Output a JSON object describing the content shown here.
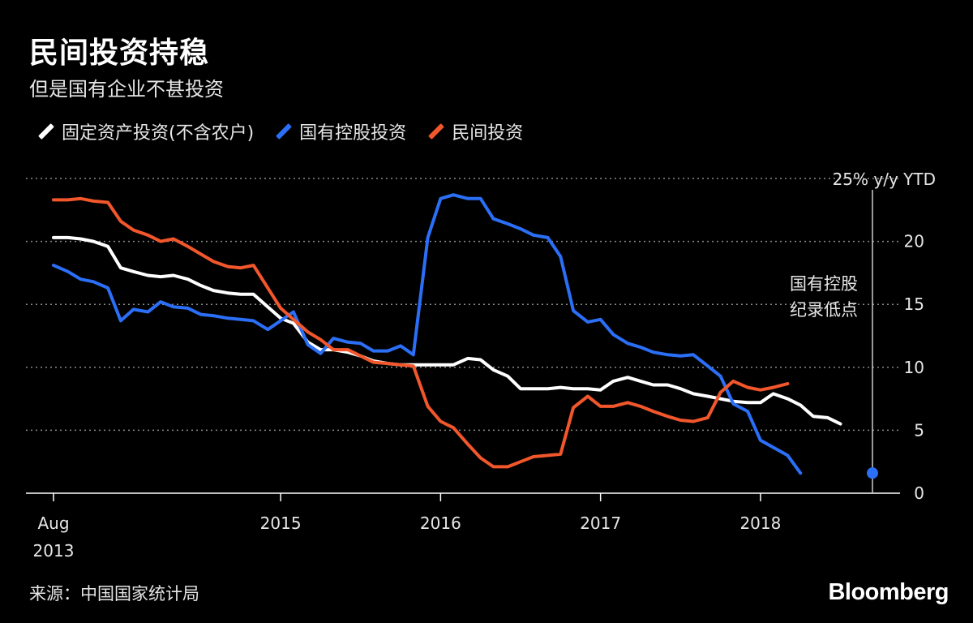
{
  "chart_data": {
    "type": "line",
    "title": "民间投资持稳",
    "subtitle": "但是国有企业不甚投资",
    "unit_label": "25% y/y YTD",
    "ylim": [
      0,
      25
    ],
    "yticks": [
      0,
      5,
      10,
      15,
      20
    ],
    "xlim": [
      2013.58,
      2018.7
    ],
    "xticks": [
      {
        "value": 2013.58,
        "line1": "Aug",
        "line2": "2013"
      },
      {
        "value": 2015.0,
        "line1": "2015",
        "line2": ""
      },
      {
        "value": 2016.0,
        "line1": "2016",
        "line2": ""
      },
      {
        "value": 2017.0,
        "line1": "2017",
        "line2": ""
      },
      {
        "value": 2018.0,
        "line1": "2018",
        "line2": ""
      }
    ],
    "grid": true,
    "legend_position": "top-left",
    "annotation": {
      "line1": "国有控股",
      "line2": "纪录低点",
      "x": 2018.58
    },
    "series": [
      {
        "name": "固定资产投资(不含农户)",
        "color": "#ffffff",
        "points": [
          [
            2013.58,
            20.3
          ],
          [
            2013.67,
            20.3
          ],
          [
            2013.75,
            20.2
          ],
          [
            2013.83,
            20.0
          ],
          [
            2013.92,
            19.6
          ],
          [
            2014.0,
            17.9
          ],
          [
            2014.08,
            17.6
          ],
          [
            2014.17,
            17.3
          ],
          [
            2014.25,
            17.2
          ],
          [
            2014.33,
            17.3
          ],
          [
            2014.42,
            17.0
          ],
          [
            2014.5,
            16.5
          ],
          [
            2014.58,
            16.1
          ],
          [
            2014.67,
            15.9
          ],
          [
            2014.75,
            15.8
          ],
          [
            2014.83,
            15.8
          ],
          [
            2015.0,
            13.9
          ],
          [
            2015.08,
            13.5
          ],
          [
            2015.17,
            12.0
          ],
          [
            2015.25,
            11.4
          ],
          [
            2015.33,
            11.4
          ],
          [
            2015.42,
            11.2
          ],
          [
            2015.5,
            10.9
          ],
          [
            2015.58,
            10.5
          ],
          [
            2015.67,
            10.3
          ],
          [
            2015.75,
            10.2
          ],
          [
            2015.83,
            10.2
          ],
          [
            2016.0,
            10.2
          ],
          [
            2016.08,
            10.2
          ],
          [
            2016.17,
            10.7
          ],
          [
            2016.25,
            10.6
          ],
          [
            2016.33,
            9.8
          ],
          [
            2016.42,
            9.3
          ],
          [
            2016.5,
            8.3
          ],
          [
            2016.58,
            8.3
          ],
          [
            2016.67,
            8.3
          ],
          [
            2016.75,
            8.4
          ],
          [
            2016.83,
            8.3
          ],
          [
            2016.92,
            8.3
          ],
          [
            2017.0,
            8.2
          ],
          [
            2017.08,
            8.9
          ],
          [
            2017.17,
            9.2
          ],
          [
            2017.25,
            8.9
          ],
          [
            2017.33,
            8.6
          ],
          [
            2017.42,
            8.6
          ],
          [
            2017.5,
            8.3
          ],
          [
            2017.58,
            7.9
          ],
          [
            2017.67,
            7.7
          ],
          [
            2017.75,
            7.5
          ],
          [
            2017.83,
            7.3
          ],
          [
            2017.92,
            7.2
          ],
          [
            2018.0,
            7.2
          ],
          [
            2018.08,
            7.9
          ],
          [
            2018.17,
            7.5
          ],
          [
            2018.25,
            7.0
          ],
          [
            2018.33,
            6.1
          ],
          [
            2018.42,
            6.0
          ],
          [
            2018.5,
            5.5
          ]
        ]
      },
      {
        "name": "国有控股投资",
        "color": "#2b6ff7",
        "points": [
          [
            2013.58,
            18.1
          ],
          [
            2013.67,
            17.6
          ],
          [
            2013.75,
            17.0
          ],
          [
            2013.83,
            16.8
          ],
          [
            2013.92,
            16.3
          ],
          [
            2014.0,
            13.7
          ],
          [
            2014.08,
            14.6
          ],
          [
            2014.17,
            14.4
          ],
          [
            2014.25,
            15.2
          ],
          [
            2014.33,
            14.8
          ],
          [
            2014.42,
            14.7
          ],
          [
            2014.5,
            14.2
          ],
          [
            2014.58,
            14.1
          ],
          [
            2014.67,
            13.9
          ],
          [
            2014.75,
            13.8
          ],
          [
            2014.83,
            13.7
          ],
          [
            2014.92,
            13.0
          ],
          [
            2015.0,
            13.7
          ],
          [
            2015.08,
            14.4
          ],
          [
            2015.17,
            11.8
          ],
          [
            2015.25,
            11.1
          ],
          [
            2015.33,
            12.3
          ],
          [
            2015.42,
            12.0
          ],
          [
            2015.5,
            11.9
          ],
          [
            2015.58,
            11.3
          ],
          [
            2015.67,
            11.3
          ],
          [
            2015.75,
            11.7
          ],
          [
            2015.83,
            11.0
          ],
          [
            2015.92,
            20.3
          ],
          [
            2016.0,
            23.4
          ],
          [
            2016.08,
            23.7
          ],
          [
            2016.17,
            23.4
          ],
          [
            2016.25,
            23.4
          ],
          [
            2016.33,
            21.8
          ],
          [
            2016.42,
            21.4
          ],
          [
            2016.5,
            21.0
          ],
          [
            2016.58,
            20.5
          ],
          [
            2016.67,
            20.3
          ],
          [
            2016.75,
            18.8
          ],
          [
            2016.83,
            14.5
          ],
          [
            2016.92,
            13.6
          ],
          [
            2017.0,
            13.8
          ],
          [
            2017.08,
            12.6
          ],
          [
            2017.17,
            11.9
          ],
          [
            2017.25,
            11.6
          ],
          [
            2017.33,
            11.2
          ],
          [
            2017.42,
            11.0
          ],
          [
            2017.5,
            10.9
          ],
          [
            2017.58,
            11.0
          ],
          [
            2017.67,
            10.1
          ],
          [
            2017.75,
            9.3
          ],
          [
            2017.83,
            7.1
          ],
          [
            2017.92,
            6.5
          ],
          [
            2018.0,
            4.2
          ],
          [
            2018.17,
            3.0
          ],
          [
            2018.25,
            1.6
          ]
        ]
      },
      {
        "name": "民间投资",
        "color": "#f2572c",
        "points": [
          [
            2013.58,
            23.3
          ],
          [
            2013.67,
            23.3
          ],
          [
            2013.75,
            23.4
          ],
          [
            2013.83,
            23.2
          ],
          [
            2013.92,
            23.1
          ],
          [
            2014.0,
            21.6
          ],
          [
            2014.08,
            20.9
          ],
          [
            2014.17,
            20.5
          ],
          [
            2014.25,
            20.0
          ],
          [
            2014.33,
            20.2
          ],
          [
            2014.42,
            19.6
          ],
          [
            2014.5,
            19.0
          ],
          [
            2014.58,
            18.4
          ],
          [
            2014.67,
            18.0
          ],
          [
            2014.75,
            17.9
          ],
          [
            2014.83,
            18.1
          ],
          [
            2015.0,
            14.7
          ],
          [
            2015.08,
            13.8
          ],
          [
            2015.17,
            12.8
          ],
          [
            2015.25,
            12.2
          ],
          [
            2015.33,
            11.4
          ],
          [
            2015.42,
            11.4
          ],
          [
            2015.5,
            10.9
          ],
          [
            2015.58,
            10.4
          ],
          [
            2015.67,
            10.3
          ],
          [
            2015.75,
            10.2
          ],
          [
            2015.83,
            10.1
          ],
          [
            2015.92,
            6.9
          ],
          [
            2016.0,
            5.7
          ],
          [
            2016.08,
            5.2
          ],
          [
            2016.17,
            3.9
          ],
          [
            2016.25,
            2.8
          ],
          [
            2016.33,
            2.1
          ],
          [
            2016.42,
            2.1
          ],
          [
            2016.5,
            2.5
          ],
          [
            2016.58,
            2.9
          ],
          [
            2016.67,
            3.0
          ],
          [
            2016.75,
            3.1
          ],
          [
            2016.83,
            6.8
          ],
          [
            2016.92,
            7.7
          ],
          [
            2017.0,
            6.9
          ],
          [
            2017.08,
            6.9
          ],
          [
            2017.17,
            7.2
          ],
          [
            2017.25,
            6.9
          ],
          [
            2017.33,
            6.5
          ],
          [
            2017.42,
            6.1
          ],
          [
            2017.5,
            5.8
          ],
          [
            2017.58,
            5.7
          ],
          [
            2017.67,
            6.0
          ],
          [
            2017.75,
            8.0
          ],
          [
            2017.83,
            8.9
          ],
          [
            2017.92,
            8.4
          ],
          [
            2018.0,
            8.2
          ],
          [
            2018.08,
            8.4
          ],
          [
            2018.17,
            8.7
          ]
        ]
      }
    ]
  },
  "source": "来源：中国国家统计局",
  "brand": "Bloomberg"
}
